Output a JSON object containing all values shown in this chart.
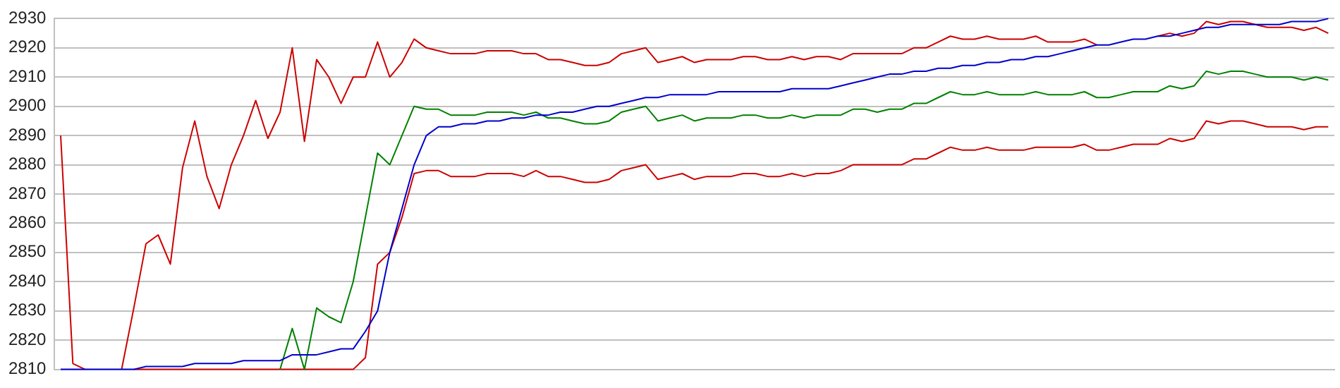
{
  "chart_data": {
    "type": "line",
    "categories": [
      null,
      null,
      null,
      null,
      null,
      null,
      null,
      null,
      null,
      null,
      null,
      null,
      null,
      null,
      null,
      null,
      null,
      null,
      null,
      null,
      null,
      null,
      null,
      null,
      null,
      null,
      null,
      null,
      null,
      null,
      null,
      null,
      null,
      null,
      null,
      null,
      null,
      null,
      null,
      null,
      null,
      null,
      null,
      null,
      null,
      null,
      null,
      null,
      null,
      null,
      null,
      null,
      null,
      null,
      null,
      null,
      null,
      null,
      null,
      null,
      null,
      null,
      null,
      null,
      null,
      null,
      null,
      null,
      null,
      null,
      null,
      null,
      null,
      null,
      null,
      null,
      null,
      null,
      null,
      null,
      null,
      null,
      null,
      null,
      null,
      null,
      null,
      null,
      null,
      null,
      null,
      null,
      null,
      null,
      null,
      null,
      null,
      null,
      null,
      null,
      null,
      null,
      null,
      null,
      null
    ],
    "ylim": [
      2810,
      2930
    ],
    "yticks": [
      2810,
      2820,
      2830,
      2840,
      2850,
      2860,
      2870,
      2880,
      2890,
      2900,
      2910,
      2920,
      2930
    ],
    "grid": "y",
    "legend": false,
    "marker": "none",
    "line_style": "solid",
    "tick_labels": "y",
    "series": [
      {
        "color": "#0000cc",
        "values": [
          2810,
          2810,
          2810,
          2810,
          2810,
          2810,
          2810,
          2811,
          2811,
          2811,
          2811,
          2812,
          2812,
          2812,
          2812,
          2813,
          2813,
          2813,
          2813,
          2815,
          2815,
          2815,
          2816,
          2817,
          2817,
          2823,
          2830,
          2850,
          2865,
          2880,
          2890,
          2893,
          2893,
          2894,
          2894,
          2895,
          2895,
          2896,
          2896,
          2897,
          2897,
          2898,
          2898,
          2899,
          2900,
          2900,
          2901,
          2902,
          2903,
          2903,
          2904,
          2904,
          2904,
          2904,
          2905,
          2905,
          2905,
          2905,
          2905,
          2905,
          2906,
          2906,
          2906,
          2906,
          2907,
          2908,
          2909,
          2910,
          2911,
          2911,
          2912,
          2912,
          2913,
          2913,
          2914,
          2914,
          2915,
          2915,
          2916,
          2916,
          2917,
          2917,
          2918,
          2919,
          2920,
          2921,
          2921,
          2922,
          2923,
          2923,
          2924,
          2924,
          2925,
          2926,
          2927,
          2927,
          2928,
          2928,
          2928,
          2928,
          2928,
          2929,
          2929,
          2929,
          2930
        ]
      },
      {
        "color": "#cc0000",
        "values": [
          2890,
          2812,
          2810,
          null,
          null,
          2810,
          2831,
          2853,
          2856,
          2846,
          2879,
          2895,
          2876,
          2865,
          2880,
          2890,
          2902,
          2889,
          2898,
          2920,
          2888,
          2916,
          2910,
          2901,
          2910,
          2910,
          2922,
          2910,
          2915,
          2923,
          2920,
          2919,
          2918,
          2918,
          2918,
          2919,
          2919,
          2919,
          2918,
          2918,
          2916,
          2916,
          2915,
          2914,
          2914,
          2915,
          2918,
          2919,
          2920,
          2915,
          2916,
          2917,
          2915,
          2916,
          2916,
          2916,
          2917,
          2917,
          2916,
          2916,
          2917,
          2916,
          2917,
          2917,
          2916,
          2918,
          2918,
          2918,
          2918,
          2918,
          2920,
          2920,
          2922,
          2924,
          2923,
          2923,
          2924,
          2923,
          2923,
          2923,
          2924,
          2922,
          2922,
          2922,
          2923,
          2921,
          null,
          null,
          null,
          null,
          2924,
          2925,
          2924,
          2925,
          2929,
          2928,
          2929,
          2929,
          2928,
          2927,
          2927,
          2927,
          2926,
          2927,
          2925
        ]
      },
      {
        "color": "#008000",
        "values": [
          null,
          null,
          null,
          null,
          null,
          null,
          null,
          null,
          null,
          null,
          null,
          null,
          null,
          null,
          null,
          null,
          null,
          null,
          2810,
          2824,
          2810,
          2831,
          2828,
          2826,
          2840,
          2862,
          2884,
          2880,
          2890,
          2900,
          2899,
          2899,
          2897,
          2897,
          2897,
          2898,
          2898,
          2898,
          2897,
          2898,
          2896,
          2896,
          2895,
          2894,
          2894,
          2895,
          2898,
          2899,
          2900,
          2895,
          2896,
          2897,
          2895,
          2896,
          2896,
          2896,
          2897,
          2897,
          2896,
          2896,
          2897,
          2896,
          2897,
          2897,
          2897,
          2899,
          2899,
          2898,
          2899,
          2899,
          2901,
          2901,
          2903,
          2905,
          2904,
          2904,
          2905,
          2904,
          2904,
          2904,
          2905,
          2904,
          2904,
          2904,
          2905,
          2903,
          2903,
          2904,
          2905,
          2905,
          2905,
          2907,
          2906,
          2907,
          2912,
          2911,
          2912,
          2912,
          2911,
          2910,
          2910,
          2910,
          2909,
          2910,
          2909
        ]
      },
      {
        "color": "#cc0000",
        "values": [
          null,
          null,
          null,
          null,
          null,
          null,
          2810,
          2810,
          2810,
          2810,
          2810,
          2810,
          2810,
          2810,
          2810,
          2810,
          2810,
          2810,
          2810,
          2810,
          2810,
          2810,
          2810,
          2810,
          2810,
          2814,
          2846,
          2850,
          2862,
          2877,
          2878,
          2878,
          2876,
          2876,
          2876,
          2877,
          2877,
          2877,
          2876,
          2878,
          2876,
          2876,
          2875,
          2874,
          2874,
          2875,
          2878,
          2879,
          2880,
          2875,
          2876,
          2877,
          2875,
          2876,
          2876,
          2876,
          2877,
          2877,
          2876,
          2876,
          2877,
          2876,
          2877,
          2877,
          2878,
          2880,
          2880,
          2880,
          2880,
          2880,
          2882,
          2882,
          2884,
          2886,
          2885,
          2885,
          2886,
          2885,
          2885,
          2885,
          2886,
          2886,
          2886,
          2886,
          2887,
          2885,
          2885,
          2886,
          2887,
          2887,
          2887,
          2889,
          2888,
          2889,
          2895,
          2894,
          2895,
          2895,
          2894,
          2893,
          2893,
          2893,
          2892,
          2893,
          2893
        ]
      }
    ]
  }
}
